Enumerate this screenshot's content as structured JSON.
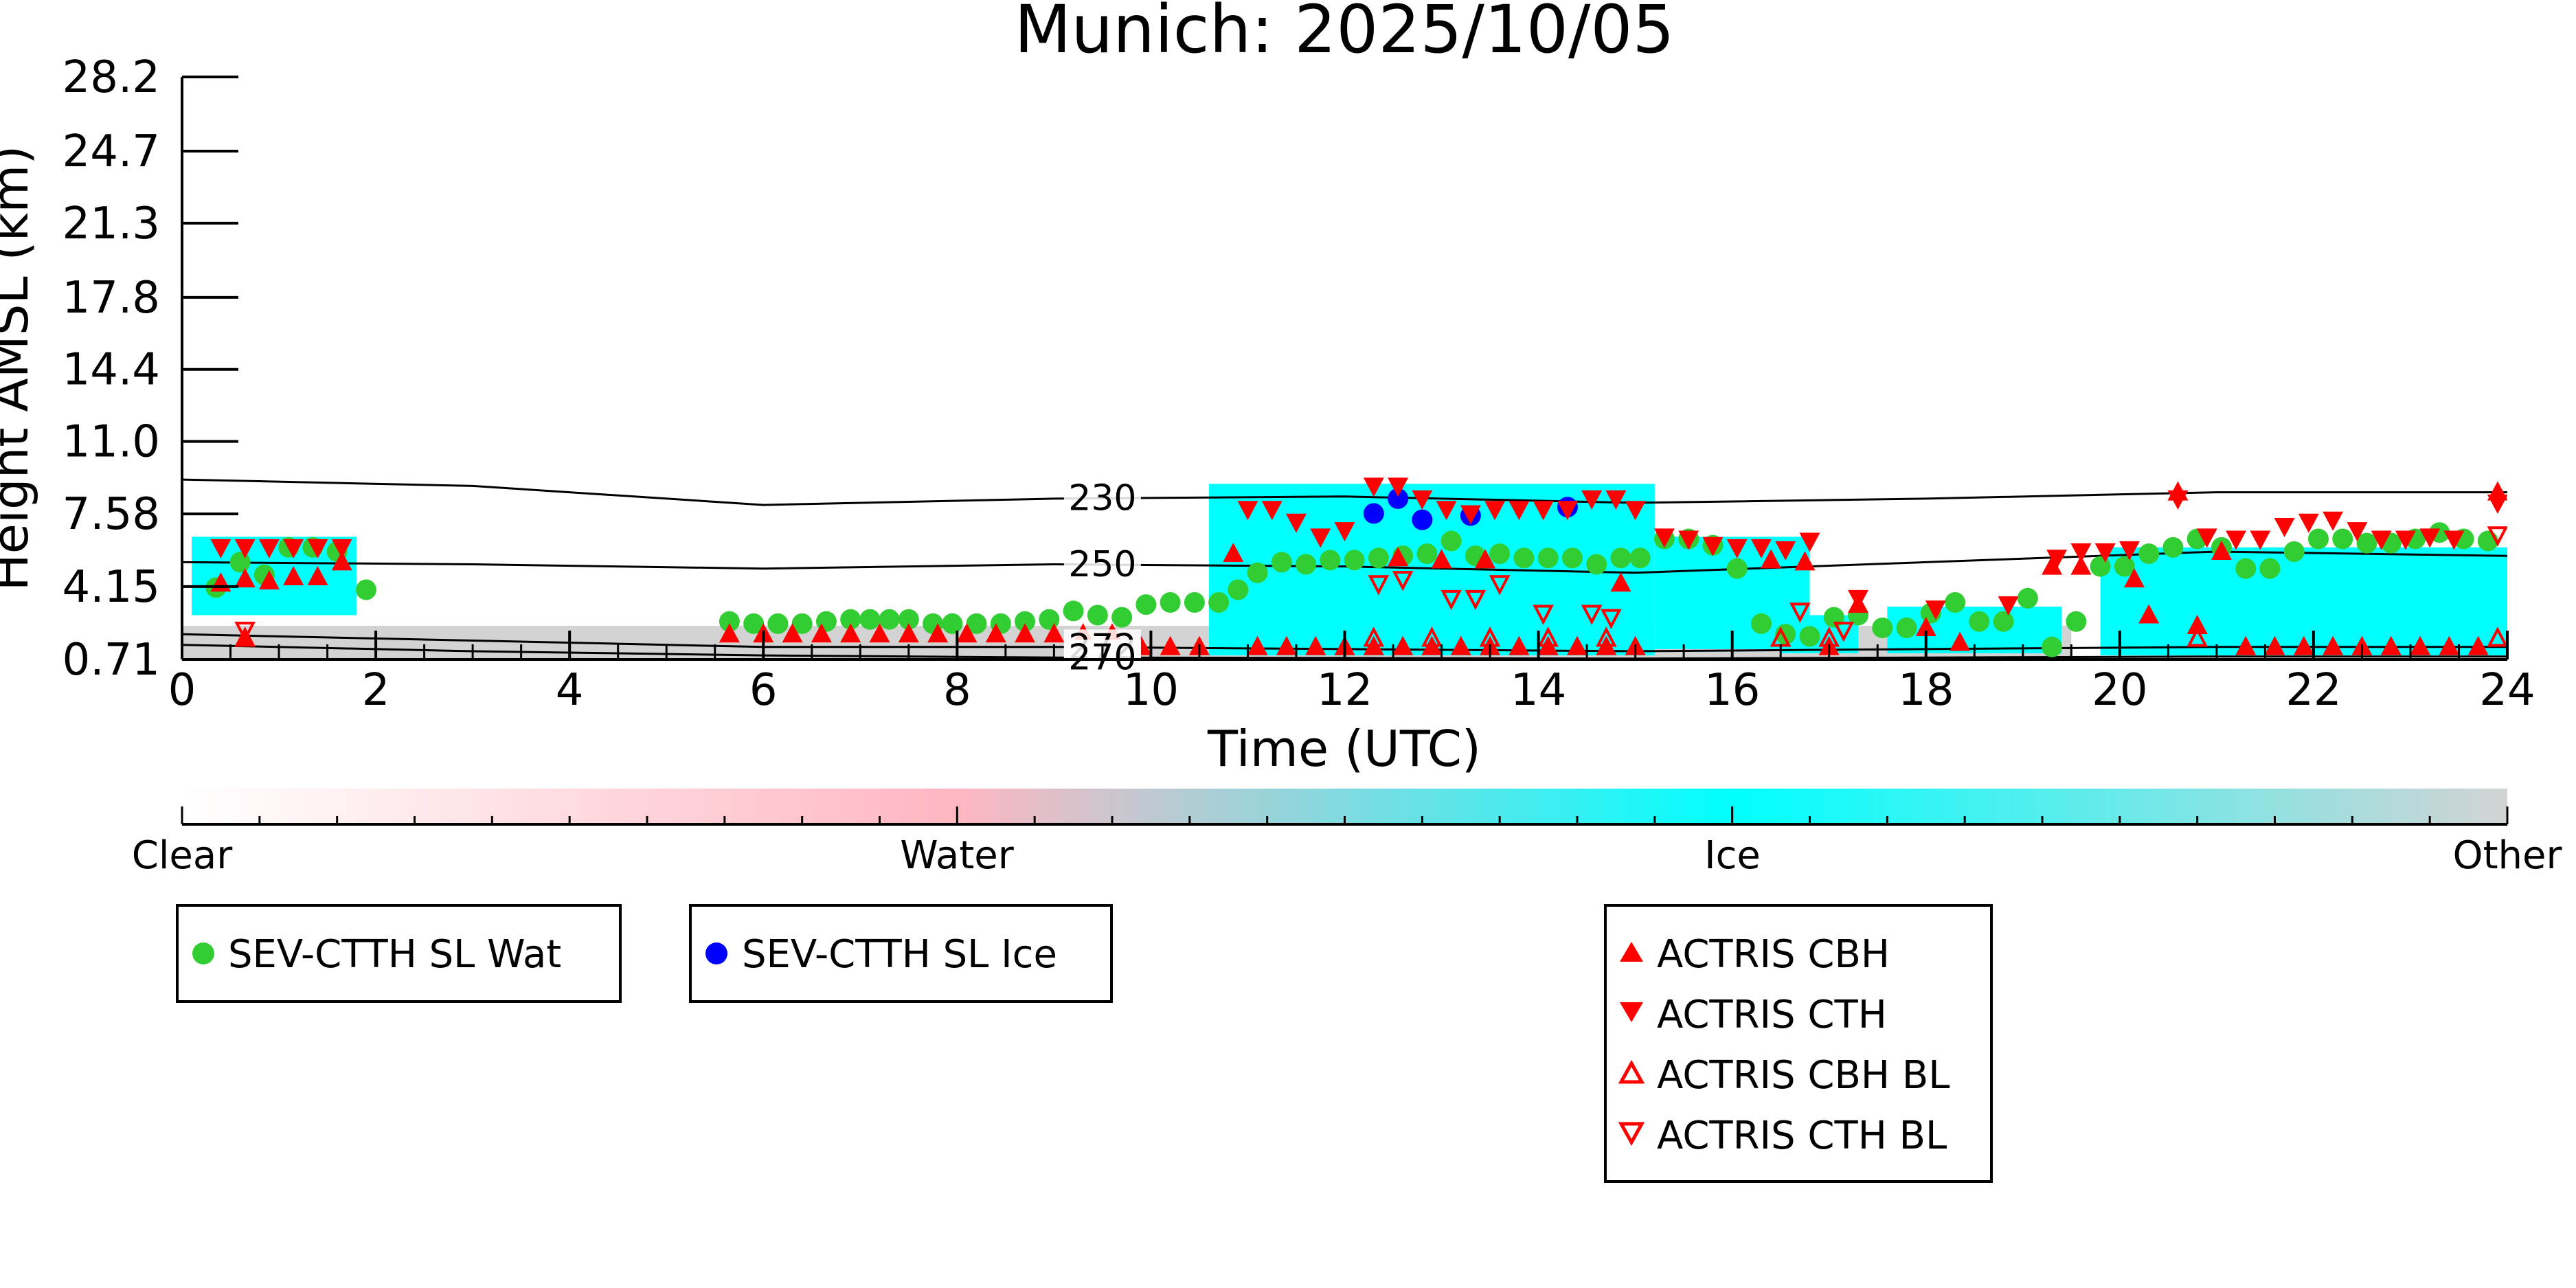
{
  "chart_data": {
    "type": "scatter",
    "title": "Munich: 2025/10/05",
    "xlabel": "Time (UTC)",
    "ylabel": "Height AMSL (km)",
    "xlim": [
      0,
      24
    ],
    "xticks": [
      0,
      2,
      4,
      6,
      8,
      10,
      12,
      14,
      16,
      18,
      20,
      22,
      24
    ],
    "xtick_labels": [
      "0",
      "2",
      "4",
      "6",
      "8",
      "10",
      "12",
      "14",
      "16",
      "18",
      "20",
      "22",
      "24"
    ],
    "yticks": [
      0.71,
      4.15,
      7.58,
      11.0,
      14.4,
      17.8,
      21.3,
      24.7,
      28.2
    ],
    "ytick_labels": [
      "0.71",
      "4.15",
      "7.58",
      "11.0",
      "14.4",
      "17.8",
      "21.3",
      "24.7",
      "28.2"
    ],
    "ylim": [
      0.71,
      28.2
    ],
    "background_classes": [
      {
        "name": "Ice",
        "color": "#00ffff",
        "regions": [
          {
            "x": [
              0.1,
              1.8
            ],
            "y": [
              2.8,
              6.5
            ]
          },
          {
            "x": [
              10.6,
              15.2
            ],
            "y": [
              0.9,
              9.0
            ]
          },
          {
            "x": [
              15.2,
              16.8
            ],
            "y": [
              1.2,
              6.5
            ]
          },
          {
            "x": [
              16.5,
              17.3
            ],
            "y": [
              1.0,
              2.8
            ]
          },
          {
            "x": [
              17.6,
              19.4
            ],
            "y": [
              1.0,
              3.2
            ]
          },
          {
            "x": [
              19.8,
              24.0
            ],
            "y": [
              0.9,
              6.0
            ]
          }
        ]
      },
      {
        "name": "Other",
        "color": "#d3d3d3",
        "regions": [
          {
            "x": [
              0,
              19.5
            ],
            "y": [
              0.71,
              2.3
            ]
          }
        ]
      }
    ],
    "contours": [
      {
        "label": "230",
        "label_x": 9.5,
        "x": [
          0,
          3,
          6,
          9,
          12,
          15,
          18,
          21,
          24
        ],
        "y": [
          9.2,
          8.9,
          8.0,
          8.3,
          8.4,
          8.1,
          8.3,
          8.6,
          8.6
        ]
      },
      {
        "label": "250",
        "label_x": 9.5,
        "x": [
          0,
          3,
          6,
          9,
          12,
          15,
          18,
          21,
          24
        ],
        "y": [
          5.3,
          5.2,
          5.0,
          5.2,
          5.1,
          4.8,
          5.3,
          5.8,
          5.6
        ]
      },
      {
        "label": "272",
        "label_x": 9.5,
        "x": [
          0,
          3,
          6,
          9,
          12,
          15,
          18,
          21,
          24
        ],
        "y": [
          1.9,
          1.6,
          1.3,
          1.3,
          1.2,
          1.1,
          1.2,
          1.3,
          1.3
        ]
      },
      {
        "label": "270",
        "label_x": 9.5,
        "x": [
          0,
          3,
          6,
          9,
          12,
          15,
          18,
          21,
          24
        ],
        "y": [
          1.4,
          1.1,
          0.9,
          0.8,
          0.78,
          0.75,
          0.8,
          0.85,
          0.85
        ]
      }
    ],
    "series": [
      {
        "name": "SEV-CTTH SL Wat",
        "marker": "circle",
        "color": "#32cd32",
        "points": [
          [
            0.35,
            4.1
          ],
          [
            0.6,
            5.3
          ],
          [
            0.85,
            4.7
          ],
          [
            1.1,
            6.0
          ],
          [
            1.35,
            6.0
          ],
          [
            1.6,
            5.8
          ],
          [
            1.9,
            4.0
          ],
          [
            5.65,
            2.5
          ],
          [
            5.9,
            2.4
          ],
          [
            6.15,
            2.4
          ],
          [
            6.4,
            2.4
          ],
          [
            6.65,
            2.5
          ],
          [
            6.9,
            2.6
          ],
          [
            7.1,
            2.6
          ],
          [
            7.3,
            2.6
          ],
          [
            7.5,
            2.6
          ],
          [
            7.75,
            2.4
          ],
          [
            7.95,
            2.4
          ],
          [
            8.2,
            2.4
          ],
          [
            8.45,
            2.4
          ],
          [
            8.7,
            2.5
          ],
          [
            8.95,
            2.6
          ],
          [
            9.2,
            3.0
          ],
          [
            9.45,
            2.8
          ],
          [
            9.7,
            2.7
          ],
          [
            9.95,
            3.3
          ],
          [
            10.2,
            3.4
          ],
          [
            10.45,
            3.4
          ],
          [
            10.7,
            3.4
          ],
          [
            10.9,
            4.0
          ],
          [
            11.1,
            4.8
          ],
          [
            11.35,
            5.3
          ],
          [
            11.6,
            5.2
          ],
          [
            11.85,
            5.4
          ],
          [
            12.1,
            5.4
          ],
          [
            12.35,
            5.5
          ],
          [
            12.6,
            5.6
          ],
          [
            12.85,
            5.7
          ],
          [
            13.1,
            6.3
          ],
          [
            13.35,
            5.6
          ],
          [
            13.6,
            5.7
          ],
          [
            13.85,
            5.5
          ],
          [
            14.1,
            5.5
          ],
          [
            14.35,
            5.5
          ],
          [
            14.6,
            5.2
          ],
          [
            14.85,
            5.5
          ],
          [
            15.05,
            5.5
          ],
          [
            15.3,
            6.4
          ],
          [
            15.55,
            6.4
          ],
          [
            15.8,
            6.1
          ],
          [
            16.05,
            5.0
          ],
          [
            16.3,
            2.4
          ],
          [
            16.55,
            1.9
          ],
          [
            16.8,
            1.8
          ],
          [
            17.05,
            2.7
          ],
          [
            17.3,
            2.8
          ],
          [
            17.55,
            2.2
          ],
          [
            17.8,
            2.2
          ],
          [
            18.05,
            2.9
          ],
          [
            18.3,
            3.4
          ],
          [
            18.55,
            2.5
          ],
          [
            18.8,
            2.5
          ],
          [
            19.05,
            3.6
          ],
          [
            19.3,
            1.3
          ],
          [
            19.55,
            2.5
          ],
          [
            19.8,
            5.1
          ],
          [
            20.05,
            5.1
          ],
          [
            20.3,
            5.7
          ],
          [
            20.55,
            6.0
          ],
          [
            20.8,
            6.4
          ],
          [
            21.05,
            6.0
          ],
          [
            21.3,
            5.0
          ],
          [
            21.55,
            5.0
          ],
          [
            21.8,
            5.8
          ],
          [
            22.05,
            6.4
          ],
          [
            22.3,
            6.4
          ],
          [
            22.55,
            6.2
          ],
          [
            22.8,
            6.2
          ],
          [
            23.05,
            6.4
          ],
          [
            23.3,
            6.7
          ],
          [
            23.55,
            6.4
          ],
          [
            23.8,
            6.3
          ]
        ]
      },
      {
        "name": "SEV-CTTH SL Ice",
        "marker": "circle",
        "color": "#0000ff",
        "points": [
          [
            12.3,
            7.6
          ],
          [
            12.55,
            8.3
          ],
          [
            12.8,
            7.3
          ],
          [
            13.3,
            7.5
          ],
          [
            14.3,
            7.9
          ]
        ]
      },
      {
        "name": "ACTRIS CBH",
        "marker": "triangle-up",
        "color": "#ff0000",
        "points": [
          [
            0.4,
            4.3
          ],
          [
            0.65,
            4.5
          ],
          [
            0.9,
            4.4
          ],
          [
            1.15,
            4.6
          ],
          [
            1.4,
            4.6
          ],
          [
            1.65,
            5.3
          ],
          [
            0.65,
            1.7
          ],
          [
            10.85,
            5.7
          ],
          [
            11.1,
            1.3
          ],
          [
            11.4,
            1.3
          ],
          [
            11.7,
            1.3
          ],
          [
            12.0,
            1.3
          ],
          [
            12.3,
            1.3
          ],
          [
            12.6,
            1.3
          ],
          [
            12.9,
            1.3
          ],
          [
            13.2,
            1.3
          ],
          [
            13.5,
            1.3
          ],
          [
            13.8,
            1.3
          ],
          [
            14.1,
            1.3
          ],
          [
            14.4,
            1.3
          ],
          [
            14.7,
            1.3
          ],
          [
            14.85,
            4.3
          ],
          [
            15.0,
            1.3
          ],
          [
            12.55,
            5.5
          ],
          [
            13.0,
            5.4
          ],
          [
            13.45,
            5.4
          ],
          [
            16.4,
            5.4
          ],
          [
            16.75,
            5.3
          ],
          [
            17.0,
            1.3
          ],
          [
            17.3,
            3.3
          ],
          [
            18.0,
            2.2
          ],
          [
            18.35,
            1.5
          ],
          [
            19.3,
            5.1
          ],
          [
            19.6,
            5.1
          ],
          [
            20.15,
            4.5
          ],
          [
            20.3,
            2.8
          ],
          [
            20.6,
            8.6
          ],
          [
            20.8,
            2.3
          ],
          [
            21.05,
            5.8
          ],
          [
            21.3,
            1.3
          ],
          [
            21.6,
            1.3
          ],
          [
            21.9,
            1.3
          ],
          [
            22.2,
            1.3
          ],
          [
            22.5,
            1.3
          ],
          [
            22.8,
            1.3
          ],
          [
            23.1,
            1.3
          ],
          [
            23.4,
            1.3
          ],
          [
            23.7,
            1.3
          ],
          [
            23.9,
            8.6
          ],
          [
            5.65,
            1.9
          ],
          [
            6.0,
            1.9
          ],
          [
            6.3,
            1.9
          ],
          [
            6.6,
            1.9
          ],
          [
            6.9,
            1.9
          ],
          [
            7.2,
            1.9
          ],
          [
            7.5,
            1.9
          ],
          [
            7.8,
            1.9
          ],
          [
            8.1,
            1.9
          ],
          [
            8.4,
            1.9
          ],
          [
            8.7,
            1.9
          ],
          [
            9.0,
            1.9
          ],
          [
            9.3,
            1.9
          ],
          [
            9.6,
            1.9
          ],
          [
            9.9,
            1.3
          ],
          [
            10.2,
            1.3
          ],
          [
            10.5,
            1.3
          ]
        ]
      },
      {
        "name": "ACTRIS CTH",
        "marker": "triangle-down",
        "color": "#ff0000",
        "points": [
          [
            0.4,
            6.0
          ],
          [
            0.65,
            6.0
          ],
          [
            0.9,
            6.0
          ],
          [
            1.15,
            6.0
          ],
          [
            1.4,
            6.0
          ],
          [
            1.65,
            6.0
          ],
          [
            11.0,
            7.8
          ],
          [
            11.25,
            7.8
          ],
          [
            11.5,
            7.2
          ],
          [
            11.75,
            6.5
          ],
          [
            12.0,
            6.8
          ],
          [
            12.3,
            8.9
          ],
          [
            12.55,
            8.9
          ],
          [
            12.8,
            8.3
          ],
          [
            13.05,
            7.8
          ],
          [
            13.3,
            7.6
          ],
          [
            13.55,
            7.8
          ],
          [
            13.8,
            7.8
          ],
          [
            14.05,
            7.8
          ],
          [
            14.3,
            7.8
          ],
          [
            14.55,
            8.3
          ],
          [
            14.8,
            8.3
          ],
          [
            15.0,
            7.8
          ],
          [
            15.3,
            6.5
          ],
          [
            15.55,
            6.4
          ],
          [
            15.8,
            6.1
          ],
          [
            16.05,
            6.0
          ],
          [
            16.3,
            6.0
          ],
          [
            16.55,
            5.9
          ],
          [
            16.8,
            6.3
          ],
          [
            17.3,
            3.6
          ],
          [
            18.1,
            3.1
          ],
          [
            18.85,
            3.3
          ],
          [
            19.35,
            5.5
          ],
          [
            19.6,
            5.8
          ],
          [
            19.85,
            5.8
          ],
          [
            20.1,
            5.9
          ],
          [
            20.6,
            8.3
          ],
          [
            20.9,
            6.5
          ],
          [
            21.2,
            6.4
          ],
          [
            21.45,
            6.4
          ],
          [
            21.7,
            7.0
          ],
          [
            21.95,
            7.2
          ],
          [
            22.2,
            7.3
          ],
          [
            22.45,
            6.8
          ],
          [
            22.7,
            6.4
          ],
          [
            22.95,
            6.4
          ],
          [
            23.2,
            6.5
          ],
          [
            23.45,
            6.4
          ],
          [
            23.9,
            8.1
          ]
        ]
      },
      {
        "name": "ACTRIS CBH BL",
        "marker": "triangle-up-open",
        "color": "#ff0000",
        "points": [
          [
            0.65,
            1.7
          ],
          [
            12.3,
            1.7
          ],
          [
            12.9,
            1.7
          ],
          [
            13.5,
            1.7
          ],
          [
            14.1,
            1.7
          ],
          [
            14.7,
            1.7
          ],
          [
            16.5,
            1.7
          ],
          [
            17.0,
            1.7
          ],
          [
            20.8,
            1.7
          ],
          [
            23.9,
            1.7
          ]
        ]
      },
      {
        "name": "ACTRIS CTH BL",
        "marker": "triangle-down-open",
        "color": "#ff0000",
        "points": [
          [
            0.65,
            2.1
          ],
          [
            12.35,
            4.3
          ],
          [
            12.6,
            4.5
          ],
          [
            13.1,
            3.6
          ],
          [
            13.35,
            3.6
          ],
          [
            13.6,
            4.3
          ],
          [
            14.05,
            2.9
          ],
          [
            14.55,
            2.9
          ],
          [
            14.75,
            2.7
          ],
          [
            16.7,
            3.0
          ],
          [
            17.15,
            2.1
          ],
          [
            23.9,
            6.6
          ]
        ]
      }
    ],
    "colorbar": {
      "labels": [
        "Clear",
        "Water",
        "Ice",
        "Other"
      ],
      "colors": [
        "#ffffff",
        "#ffb6c1",
        "#00ffff",
        "#d3d3d3"
      ]
    },
    "legends": [
      {
        "entries": [
          "SEV-CTTH SL Wat"
        ],
        "location": "lower-left"
      },
      {
        "entries": [
          "SEV-CTTH SL Ice"
        ],
        "location": "lower-left"
      },
      {
        "entries": [
          "ACTRIS CBH",
          "ACTRIS CTH",
          "ACTRIS CBH BL",
          "ACTRIS CTH BL"
        ],
        "location": "lower-center"
      }
    ]
  }
}
